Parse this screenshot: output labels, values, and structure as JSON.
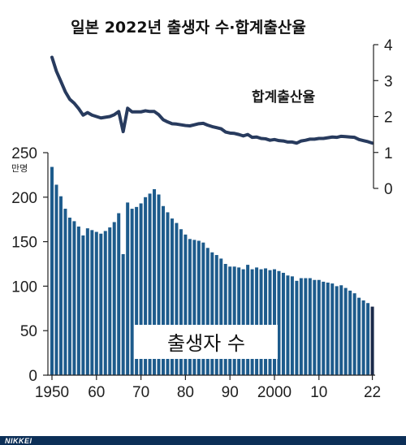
{
  "title": "일본 2022년 출생자 수·합계출산율",
  "footer": {
    "logo_text": "NIKKEI"
  },
  "colors": {
    "bars": "#1d5b8c",
    "highlight_bar": "#1a2a4a",
    "line": "#283b5e",
    "footer_bg": "#0c2f57",
    "axis": "#222222"
  },
  "chart_data": {
    "type": "bar",
    "title": "일본 2022년 출생자 수·합계출산율",
    "x": [
      1950,
      1951,
      1952,
      1953,
      1954,
      1955,
      1956,
      1957,
      1958,
      1959,
      1960,
      1961,
      1962,
      1963,
      1964,
      1965,
      1966,
      1967,
      1968,
      1969,
      1970,
      1971,
      1972,
      1973,
      1974,
      1975,
      1976,
      1977,
      1978,
      1979,
      1980,
      1981,
      1982,
      1983,
      1984,
      1985,
      1986,
      1987,
      1988,
      1989,
      1990,
      1991,
      1992,
      1993,
      1994,
      1995,
      1996,
      1997,
      1998,
      1999,
      2000,
      2001,
      2002,
      2003,
      2004,
      2005,
      2006,
      2007,
      2008,
      2009,
      2010,
      2011,
      2012,
      2013,
      2014,
      2015,
      2016,
      2017,
      2018,
      2019,
      2020,
      2021,
      2022
    ],
    "x_tick_labels": [
      "1950",
      "60",
      "70",
      "80",
      "90",
      "2000",
      "10",
      "22"
    ],
    "x_tick_values": [
      1950,
      1960,
      1970,
      1980,
      1990,
      2000,
      2010,
      2022
    ],
    "series": [
      {
        "name": "출생자 수",
        "unit": "만명",
        "axis": "left",
        "ylim": [
          0,
          250
        ],
        "y_ticks": [
          "0",
          "50",
          "100",
          "150",
          "200",
          "250"
        ],
        "values": [
          234,
          214,
          201,
          187,
          177,
          173,
          167,
          157,
          165,
          163,
          161,
          159,
          162,
          166,
          172,
          182,
          136,
          194,
          187,
          189,
          193,
          200,
          204,
          209,
          203,
          190,
          183,
          176,
          171,
          164,
          158,
          153,
          152,
          151,
          149,
          143,
          138,
          135,
          131,
          125,
          122,
          122,
          121,
          119,
          124,
          119,
          121,
          119,
          120,
          118,
          119,
          117,
          115,
          112,
          111,
          106,
          109,
          109,
          109,
          107,
          107,
          105,
          104,
          103,
          100,
          101,
          98,
          95,
          92,
          87,
          84,
          81,
          77
        ],
        "highlight_last": true
      },
      {
        "name": "합계출산율",
        "axis": "right",
        "ylim": [
          0,
          4
        ],
        "y_ticks": [
          "0",
          "1",
          "2",
          "3",
          "4"
        ],
        "values": [
          3.65,
          3.26,
          2.98,
          2.69,
          2.48,
          2.37,
          2.22,
          2.04,
          2.11,
          2.04,
          2.0,
          1.96,
          1.98,
          2.0,
          2.05,
          2.14,
          1.58,
          2.23,
          2.13,
          2.13,
          2.13,
          2.16,
          2.14,
          2.14,
          2.05,
          1.91,
          1.85,
          1.8,
          1.79,
          1.77,
          1.75,
          1.74,
          1.77,
          1.8,
          1.81,
          1.76,
          1.72,
          1.69,
          1.66,
          1.57,
          1.54,
          1.53,
          1.5,
          1.46,
          1.5,
          1.42,
          1.43,
          1.39,
          1.38,
          1.34,
          1.36,
          1.33,
          1.32,
          1.29,
          1.29,
          1.26,
          1.32,
          1.34,
          1.37,
          1.37,
          1.39,
          1.39,
          1.41,
          1.43,
          1.42,
          1.45,
          1.44,
          1.43,
          1.42,
          1.36,
          1.33,
          1.3,
          1.26
        ]
      }
    ]
  }
}
